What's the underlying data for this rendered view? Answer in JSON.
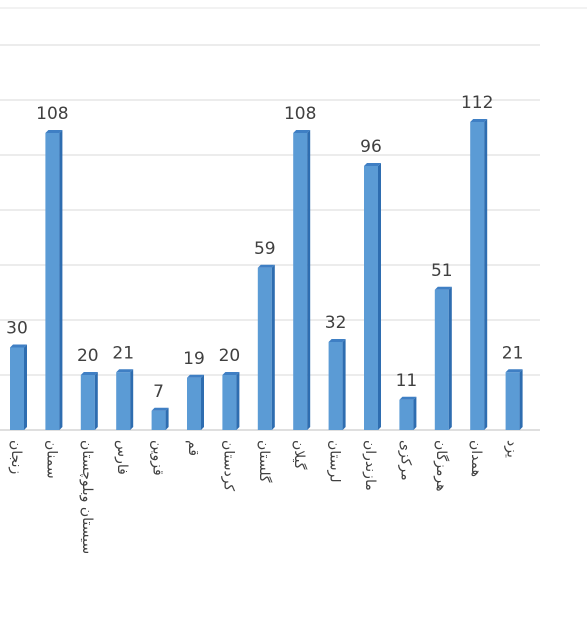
{
  "chart_data": {
    "type": "bar",
    "categories": [
      "زنجان",
      "سمنان",
      "سیستان وبلوچستان",
      "فارس",
      "قزوین",
      "قم",
      "کردستان",
      "گلستان",
      "گیلان",
      "لرستان",
      "مازندران",
      "مرکزی",
      "هرمزگان",
      "همدان",
      "یزد"
    ],
    "values": [
      30,
      108,
      20,
      21,
      7,
      19,
      20,
      59,
      108,
      32,
      96,
      11,
      51,
      112,
      21
    ],
    "color": "#5b9bd5",
    "ylim": [
      0,
      140
    ],
    "yticks": [
      0,
      20,
      40,
      60,
      80,
      100,
      120,
      140
    ],
    "grid": true
  }
}
